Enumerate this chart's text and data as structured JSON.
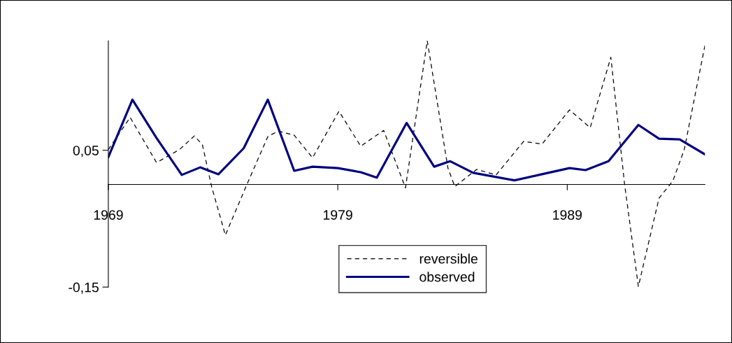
{
  "chart_data": {
    "type": "line",
    "xlim": [
      1969,
      1995
    ],
    "xticks": [
      1969,
      1979,
      1989
    ],
    "ylim": [
      -0.15,
      0.21
    ],
    "yticks": [
      {
        "value": -0.15,
        "label": "-0,15"
      },
      {
        "value": 0.05,
        "label": "0,05"
      }
    ],
    "grid": false,
    "legend": "bottom",
    "marker": "none",
    "series": [
      {
        "name": "reversible",
        "color": "#000000",
        "line_style": "dashed",
        "x": [
          1969,
          1969.95,
          1971.1,
          1972.1,
          1972.75,
          1973.1,
          1973.5,
          1974.1,
          1975.0,
          1975.95,
          1976.4,
          1977.1,
          1977.9,
          1979.05,
          1980.0,
          1981.0,
          1981.95,
          1982.9,
          1983.8,
          1984.1,
          1985.05,
          1985.9,
          1987.1,
          1987.9,
          1989.1,
          1990.0,
          1990.9,
          1991.5,
          1992.1,
          1993.0,
          1993.6,
          1994.1,
          1995.0
        ],
        "values": [
          0.051,
          0.098,
          0.032,
          0.051,
          0.071,
          0.058,
          -0.003,
          -0.074,
          -0.003,
          0.07,
          0.078,
          0.072,
          0.039,
          0.107,
          0.056,
          0.079,
          -0.005,
          0.21,
          0.024,
          -0.003,
          0.022,
          0.014,
          0.063,
          0.059,
          0.109,
          0.083,
          0.186,
          0.0,
          -0.149,
          -0.02,
          0.005,
          0.051,
          0.203
        ]
      },
      {
        "name": "observed",
        "color": "#000080",
        "line_style": "solid",
        "x": [
          1969,
          1970.05,
          1971.1,
          1972.2,
          1973.0,
          1973.8,
          1974.9,
          1975.95,
          1977.1,
          1977.9,
          1979.0,
          1980.0,
          1980.7,
          1982.0,
          1983.2,
          1983.9,
          1984.9,
          1986.7,
          1987.9,
          1989.1,
          1989.8,
          1990.8,
          1992.1,
          1993.0,
          1993.9,
          1995.0
        ],
        "values": [
          0.04,
          0.124,
          0.068,
          0.014,
          0.025,
          0.015,
          0.053,
          0.124,
          0.02,
          0.026,
          0.024,
          0.018,
          0.01,
          0.09,
          0.026,
          0.034,
          0.017,
          0.006,
          0.015,
          0.024,
          0.021,
          0.034,
          0.087,
          0.067,
          0.066,
          0.044
        ]
      }
    ]
  }
}
